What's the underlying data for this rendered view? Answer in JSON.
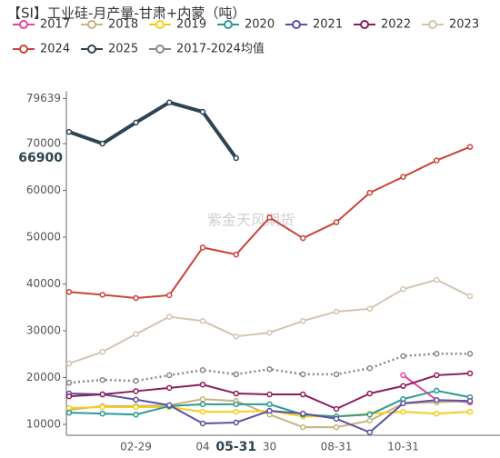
{
  "chart_data": {
    "type": "line",
    "title": "【SI】工业硅-月产量-甘肃+内蒙（吨）",
    "watermark": "紫金天风期货",
    "categories": [
      null,
      null,
      "02-29",
      null,
      "04",
      "05-31",
      "30",
      null,
      "08-31",
      null,
      "10-31",
      null,
      null
    ],
    "ylim": [
      7670,
      79639
    ],
    "yticks": [
      10000,
      20000,
      30000,
      40000,
      50000,
      60000,
      70000,
      79639
    ],
    "crosshair": {
      "x": "05-31",
      "y": 66900
    },
    "grid": false,
    "series": [
      {
        "name": "2017",
        "color": "#e8449a",
        "values": [
          null,
          null,
          null,
          null,
          null,
          null,
          null,
          null,
          null,
          null,
          20500,
          15200,
          14700
        ]
      },
      {
        "name": "2018",
        "color": "#c9b37e",
        "values": [
          13100,
          13900,
          13900,
          14100,
          15400,
          15000,
          12100,
          9400,
          9400,
          10800,
          14500,
          14700,
          15000
        ]
      },
      {
        "name": "2019",
        "color": "#f5cf1a",
        "values": [
          13500,
          13700,
          13700,
          13700,
          12700,
          12700,
          12900,
          11700,
          11700,
          12300,
          12700,
          12300,
          12700
        ]
      },
      {
        "name": "2020",
        "color": "#2a9a93",
        "values": [
          12500,
          12300,
          12100,
          13900,
          14300,
          14300,
          14300,
          12100,
          11700,
          12100,
          15400,
          17200,
          15800
        ]
      },
      {
        "name": "2021",
        "color": "#5e4fa2",
        "values": [
          16600,
          16400,
          15300,
          14100,
          10200,
          10400,
          12900,
          12300,
          11200,
          8300,
          14500,
          15200,
          15000
        ]
      },
      {
        "name": "2022",
        "color": "#8b1e5a",
        "values": [
          16000,
          16400,
          17100,
          17800,
          18500,
          16600,
          16400,
          16400,
          13300,
          16600,
          18200,
          20500,
          20900
        ]
      },
      {
        "name": "2023",
        "color": "#d3c4b1",
        "values": [
          23000,
          25500,
          29300,
          33000,
          32100,
          28800,
          29600,
          32100,
          34100,
          34700,
          38900,
          40900,
          37400
        ]
      },
      {
        "name": "2024",
        "color": "#c9433a",
        "values": [
          38300,
          37700,
          37000,
          37600,
          47800,
          46300,
          54200,
          49800,
          53200,
          59500,
          62900,
          66400,
          69300
        ]
      },
      {
        "name": "2025",
        "color": "#2e4453",
        "width": 4,
        "values": [
          72500,
          70000,
          74500,
          78800,
          76800,
          66900,
          null,
          null,
          null,
          null,
          null,
          null,
          null
        ]
      },
      {
        "name": "2017-2024均值",
        "color": "#888888",
        "dash": "dotted",
        "values": [
          18900,
          19500,
          19300,
          20500,
          21600,
          20700,
          21800,
          20700,
          20700,
          22000,
          24600,
          25100,
          25100
        ]
      }
    ]
  }
}
